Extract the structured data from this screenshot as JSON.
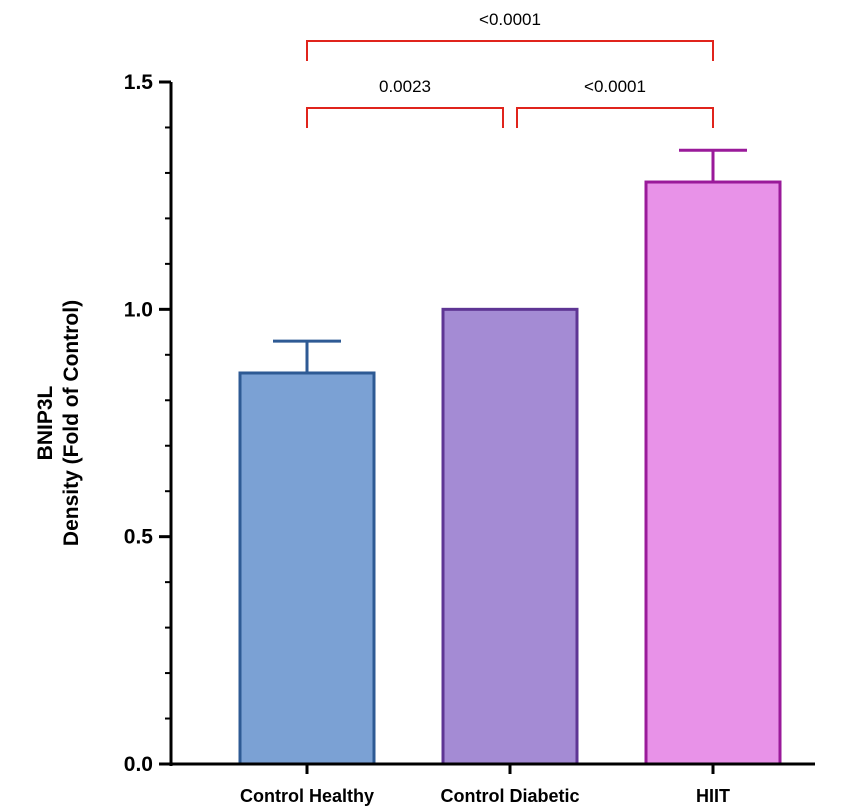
{
  "chart_data": {
    "type": "bar",
    "categories": [
      "Control Healthy",
      "Control Diabetic",
      "HIIT"
    ],
    "values": [
      0.86,
      1.0,
      1.28
    ],
    "error_upper": [
      0.93,
      1.0,
      1.35
    ],
    "ylabel_line1": "BNIP3L",
    "ylabel_line2": "Density (Fold of Control)",
    "ylim": [
      0,
      1.5
    ],
    "yticks": [
      0.0,
      0.5,
      1.0,
      1.5
    ],
    "ytick_labels": [
      "0.0",
      "0.5",
      "1.0",
      "1.5"
    ],
    "grid": false,
    "colors": {
      "fills": [
        "#7ba1d4",
        "#a48bd4",
        "#e892e8"
      ],
      "edges": [
        "#2e5a94",
        "#5e3594",
        "#9a1a9a"
      ],
      "bracket": "#e0241c"
    },
    "comparisons": [
      {
        "from": 0,
        "to": 1,
        "label": "0.0023"
      },
      {
        "from": 1,
        "to": 2,
        "label": "<0.0001"
      },
      {
        "from": 0,
        "to": 2,
        "label": "<0.0001"
      }
    ]
  }
}
